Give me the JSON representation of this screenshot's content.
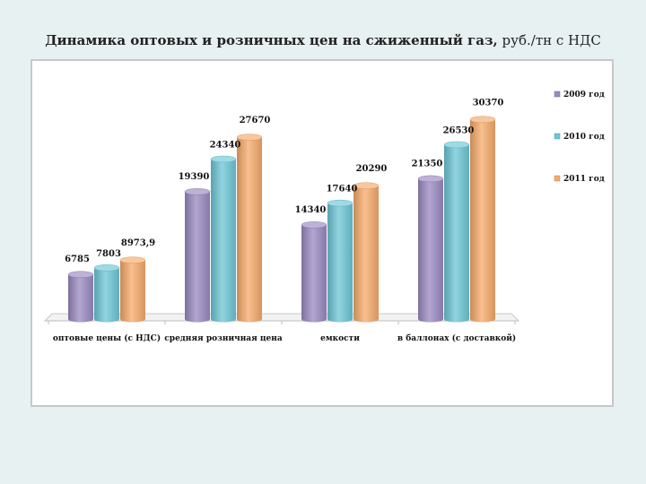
{
  "page": {
    "title_main": "Динамика оптовых и розничных цен на сжиженный газ,",
    "title_unit": " руб./тн с НДС"
  },
  "chart_data": {
    "type": "bar",
    "title": "Динамика оптовых и розничных цен на сжиженный газ, руб./тн с НДС",
    "categories": [
      "оптовые цены (с НДС)",
      "средняя розничная цена",
      "емкости",
      "в баллонах (с доставкой)"
    ],
    "series": [
      {
        "name": "2009 год",
        "values": [
          6785,
          19390,
          14340,
          21350
        ],
        "labels": [
          "6785",
          "19390",
          "14340",
          "21350"
        ],
        "color": "#9a88c0"
      },
      {
        "name": "2010 год",
        "values": [
          7803,
          24340,
          17640,
          26530
        ],
        "labels": [
          "7803",
          "24340",
          "17640",
          "26530"
        ],
        "color": "#6cc6d6"
      },
      {
        "name": "2011 год",
        "values": [
          8973.9,
          27670,
          20290,
          30370
        ],
        "labels": [
          "8973,9",
          "27670",
          "20290",
          "30370"
        ],
        "color": "#f5a96a"
      }
    ],
    "ylim": [
      0,
      33000
    ],
    "legend": "right",
    "grid": false
  }
}
